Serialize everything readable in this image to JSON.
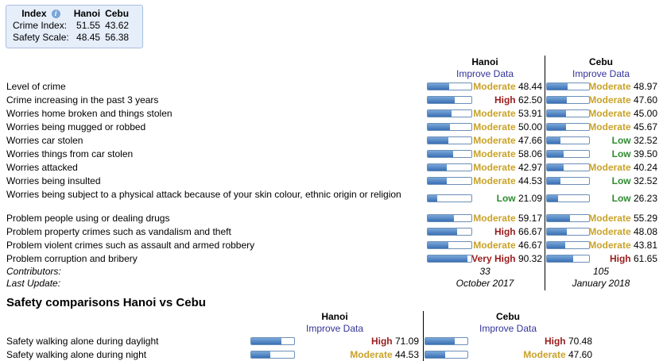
{
  "index_box": {
    "header": [
      "Index",
      "Hanoi",
      "Cebu"
    ],
    "rows": [
      {
        "label": "Crime Index:",
        "hanoi": "51.55",
        "cebu": "43.62"
      },
      {
        "label": "Safety Scale:",
        "hanoi": "48.45",
        "cebu": "56.38"
      }
    ]
  },
  "crime": {
    "cities": [
      {
        "name": "Hanoi",
        "improve": "Improve Data"
      },
      {
        "name": "Cebu",
        "improve": "Improve Data"
      }
    ],
    "rows": [
      {
        "label": "Level of crime",
        "hanoi": {
          "level": "Moderate",
          "value": "48.44",
          "pct": 48.44
        },
        "cebu": {
          "level": "Moderate",
          "value": "48.97",
          "pct": 48.97
        }
      },
      {
        "label": "Crime increasing in the past 3 years",
        "hanoi": {
          "level": "High",
          "value": "62.50",
          "pct": 62.5
        },
        "cebu": {
          "level": "Moderate",
          "value": "47.60",
          "pct": 47.6
        }
      },
      {
        "label": "Worries home broken and things stolen",
        "hanoi": {
          "level": "Moderate",
          "value": "53.91",
          "pct": 53.91
        },
        "cebu": {
          "level": "Moderate",
          "value": "45.00",
          "pct": 45.0
        }
      },
      {
        "label": "Worries being mugged or robbed",
        "hanoi": {
          "level": "Moderate",
          "value": "50.00",
          "pct": 50.0
        },
        "cebu": {
          "level": "Moderate",
          "value": "45.67",
          "pct": 45.67
        }
      },
      {
        "label": "Worries car stolen",
        "hanoi": {
          "level": "Moderate",
          "value": "47.66",
          "pct": 47.66
        },
        "cebu": {
          "level": "Low",
          "value": "32.52",
          "pct": 32.52
        }
      },
      {
        "label": "Worries things from car stolen",
        "hanoi": {
          "level": "Moderate",
          "value": "58.06",
          "pct": 58.06
        },
        "cebu": {
          "level": "Low",
          "value": "39.50",
          "pct": 39.5
        }
      },
      {
        "label": "Worries attacked",
        "hanoi": {
          "level": "Moderate",
          "value": "42.97",
          "pct": 42.97
        },
        "cebu": {
          "level": "Moderate",
          "value": "40.24",
          "pct": 40.24
        }
      },
      {
        "label": "Worries being insulted",
        "hanoi": {
          "level": "Moderate",
          "value": "44.53",
          "pct": 44.53
        },
        "cebu": {
          "level": "Low",
          "value": "32.52",
          "pct": 32.52
        }
      },
      {
        "label": "Worries being subject to a physical attack because of your skin colour, ethnic origin or religion",
        "hanoi": {
          "level": "Low",
          "value": "21.09",
          "pct": 21.09
        },
        "cebu": {
          "level": "Low",
          "value": "26.23",
          "pct": 26.23
        }
      },
      {
        "label": "Problem people using or dealing drugs",
        "hanoi": {
          "level": "Moderate",
          "value": "59.17",
          "pct": 59.17
        },
        "cebu": {
          "level": "Moderate",
          "value": "55.29",
          "pct": 55.29
        }
      },
      {
        "label": "Problem property crimes such as vandalism and theft",
        "hanoi": {
          "level": "High",
          "value": "66.67",
          "pct": 66.67
        },
        "cebu": {
          "level": "Moderate",
          "value": "48.08",
          "pct": 48.08
        }
      },
      {
        "label": "Problem violent crimes such as assault and armed robbery",
        "hanoi": {
          "level": "Moderate",
          "value": "46.67",
          "pct": 46.67
        },
        "cebu": {
          "level": "Moderate",
          "value": "43.81",
          "pct": 43.81
        }
      },
      {
        "label": "Problem corruption and bribery",
        "hanoi": {
          "level": "Very High",
          "value": "90.32",
          "pct": 90.32
        },
        "cebu": {
          "level": "High",
          "value": "61.65",
          "pct": 61.65
        }
      }
    ],
    "contributors": {
      "label": "Contributors:",
      "hanoi": "33",
      "cebu": "105"
    },
    "last_update": {
      "label": "Last Update:",
      "hanoi": "October 2017",
      "cebu": "January 2018"
    }
  },
  "safety": {
    "title": "Safety comparisons Hanoi vs Cebu",
    "cities": [
      {
        "name": "Hanoi",
        "improve": "Improve Data"
      },
      {
        "name": "Cebu",
        "improve": "Improve Data"
      }
    ],
    "rows": [
      {
        "label": "Safety walking alone during daylight",
        "hanoi": {
          "level": "High",
          "value": "71.09",
          "pct": 71.09
        },
        "cebu": {
          "level": "High",
          "value": "70.48",
          "pct": 70.48
        }
      },
      {
        "label": "Safety walking alone during night",
        "hanoi": {
          "level": "Moderate",
          "value": "44.53",
          "pct": 44.53
        },
        "cebu": {
          "level": "Moderate",
          "value": "47.60",
          "pct": 47.6
        }
      }
    ]
  },
  "level_colors": {
    "Moderate": "#c9a227",
    "High": "#9b1c1c",
    "Very High": "#9b1c1c",
    "Low": "#2e8b2e"
  }
}
